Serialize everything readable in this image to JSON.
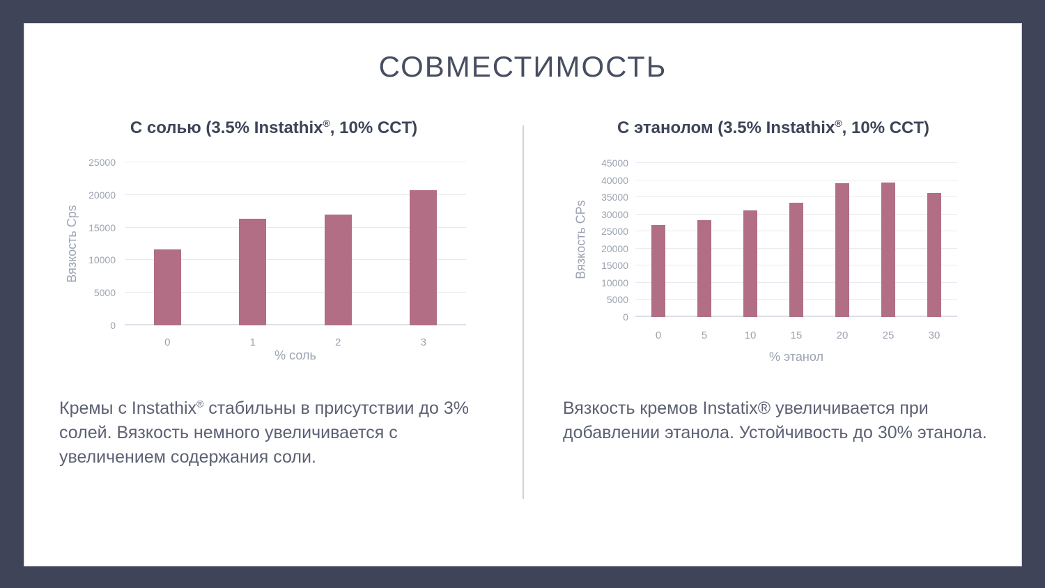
{
  "slide": {
    "title": "СОВМЕСТИМОСТЬ",
    "colors": {
      "background": "#3f4458",
      "card": "#ffffff",
      "bar": "#b16e84",
      "gridline": "#e7eaf0",
      "axis_text": "#9ba2b0",
      "heading_text": "#3c4457",
      "body_text": "#5c6173",
      "divider": "#ccd3da"
    }
  },
  "left_panel": {
    "heading_pre": "С солью (3.5% Instathix",
    "heading_reg": "®",
    "heading_post": ", 10% CCT)",
    "body_pre": "Кремы с Instathix",
    "body_reg": "®",
    "body_post": " стабильны в присутствии до 3% солей. Вязкость немного увеличивается с увеличением содержания соли."
  },
  "right_panel": {
    "heading_pre": "С этанолом (3.5% Instathix",
    "heading_reg": "®",
    "heading_post": ", 10% CCT)",
    "body": "Вязкость кремов Instatix® увеличивается при добавлении этанола. Устойчивость до 30% этанола."
  },
  "chart_data": [
    {
      "type": "bar",
      "title": "С солью (3.5% Instathix®, 10% CCT)",
      "categories": [
        "0",
        "1",
        "2",
        "3"
      ],
      "values": [
        11700,
        16400,
        17000,
        20700
      ],
      "xlabel": "% соль",
      "ylabel": "Вязкость Cps",
      "ylim": [
        0,
        25000
      ],
      "ytick_step": 5000,
      "grid": true,
      "legend": "none",
      "bar_color": "#b16e84"
    },
    {
      "type": "bar",
      "title": "С этанолом (3.5% Instathix®, 10% CCT)",
      "categories": [
        "0",
        "5",
        "10",
        "15",
        "20",
        "25",
        "30"
      ],
      "values": [
        26800,
        28300,
        31100,
        33400,
        39200,
        39300,
        36300
      ],
      "xlabel": "% этанол",
      "ylabel": "Вязкость CPs",
      "ylim": [
        0,
        45000
      ],
      "ytick_step": 5000,
      "grid": true,
      "legend": "none",
      "bar_color": "#b16e84"
    }
  ]
}
